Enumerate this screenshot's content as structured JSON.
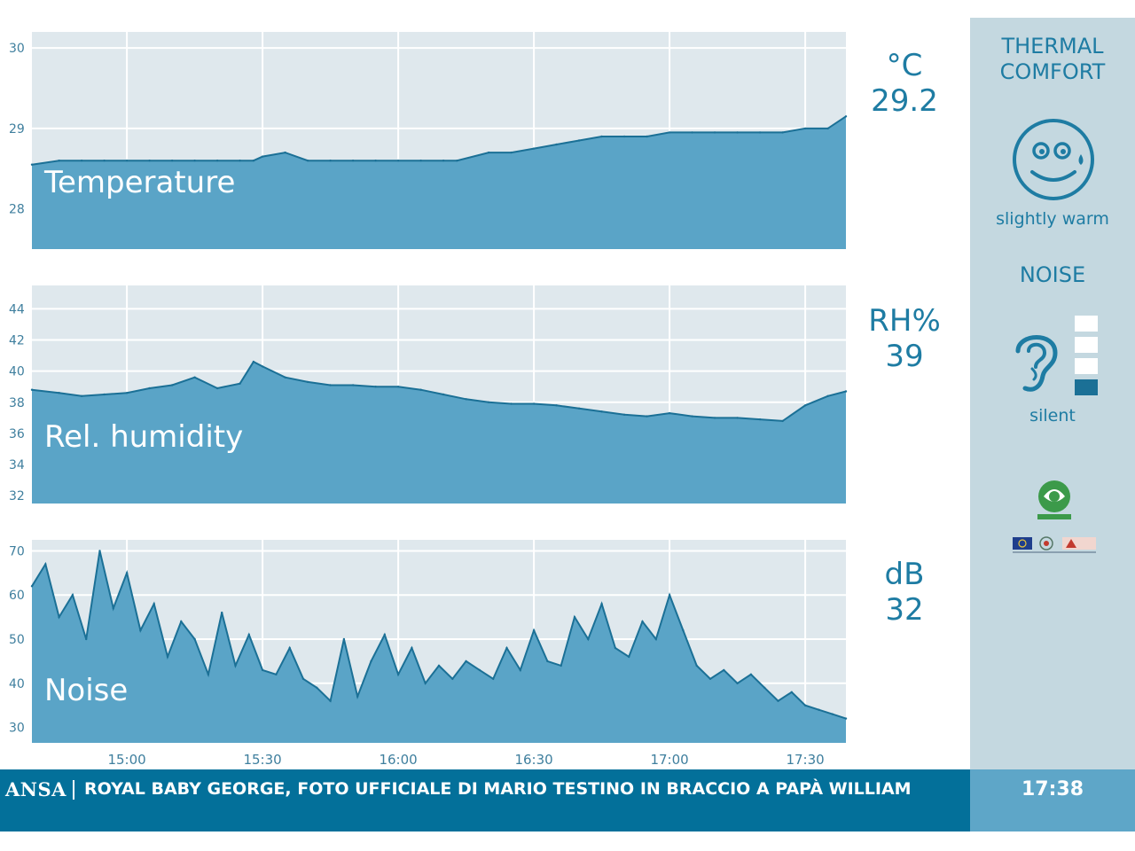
{
  "chart_data": [
    {
      "type": "area",
      "label": "Temperature",
      "unit": "°C",
      "current": "29.2",
      "ylim": [
        27.5,
        30.2
      ],
      "y_ticks": [
        "28",
        "29",
        "30"
      ],
      "x_ticks": [
        "15:00",
        "15:30",
        "16:00",
        "16:30",
        "17:00",
        "17:30"
      ],
      "grid": true,
      "x": [
        "14:39",
        "14:45",
        "14:50",
        "14:55",
        "15:00",
        "15:05",
        "15:10",
        "15:15",
        "15:20",
        "15:25",
        "15:28",
        "15:30",
        "15:35",
        "15:40",
        "15:45",
        "15:50",
        "15:55",
        "16:00",
        "16:05",
        "16:10",
        "16:13",
        "16:20",
        "16:25",
        "16:30",
        "16:35",
        "16:40",
        "16:45",
        "16:50",
        "16:55",
        "17:00",
        "17:05",
        "17:10",
        "17:15",
        "17:20",
        "17:25",
        "17:30",
        "17:35",
        "17:39"
      ],
      "y": [
        28.55,
        28.6,
        28.6,
        28.6,
        28.6,
        28.6,
        28.6,
        28.6,
        28.6,
        28.6,
        28.6,
        28.65,
        28.7,
        28.6,
        28.6,
        28.6,
        28.6,
        28.6,
        28.6,
        28.6,
        28.6,
        28.7,
        28.7,
        28.75,
        28.8,
        28.85,
        28.9,
        28.9,
        28.9,
        28.95,
        28.95,
        28.95,
        28.95,
        28.95,
        28.95,
        29.0,
        29.0,
        29.15
      ]
    },
    {
      "type": "area",
      "label": "Rel. humidity",
      "unit": "RH%",
      "current": "39",
      "ylim": [
        31.5,
        45.5
      ],
      "y_ticks": [
        "32",
        "34",
        "36",
        "38",
        "40",
        "42",
        "44"
      ],
      "x_ticks": [
        "15:00",
        "15:30",
        "16:00",
        "16:30",
        "17:00",
        "17:30"
      ],
      "grid": true,
      "x": [
        "14:39",
        "14:45",
        "14:50",
        "14:55",
        "15:00",
        "15:05",
        "15:10",
        "15:15",
        "15:20",
        "15:25",
        "15:28",
        "15:30",
        "15:35",
        "15:40",
        "15:45",
        "15:50",
        "15:55",
        "16:00",
        "16:05",
        "16:10",
        "16:15",
        "16:20",
        "16:25",
        "16:30",
        "16:35",
        "16:40",
        "16:45",
        "16:50",
        "16:55",
        "17:00",
        "17:05",
        "17:10",
        "17:15",
        "17:20",
        "17:25",
        "17:30",
        "17:35",
        "17:39"
      ],
      "y": [
        38.8,
        38.6,
        38.4,
        38.5,
        38.6,
        38.9,
        39.1,
        39.6,
        38.9,
        39.2,
        40.6,
        40.3,
        39.6,
        39.3,
        39.1,
        39.1,
        39.0,
        39.0,
        38.8,
        38.5,
        38.2,
        38.0,
        37.9,
        37.9,
        37.8,
        37.6,
        37.4,
        37.2,
        37.1,
        37.3,
        37.1,
        37.0,
        37.0,
        36.9,
        36.8,
        37.8,
        38.4,
        38.7
      ]
    },
    {
      "type": "area",
      "label": "Noise",
      "unit": "dB",
      "current": "32",
      "ylim": [
        26.5,
        72.5
      ],
      "y_ticks": [
        "30",
        "40",
        "50",
        "60",
        "70"
      ],
      "x_ticks": [
        "15:00",
        "15:30",
        "16:00",
        "16:30",
        "17:00",
        "17:30"
      ],
      "grid": true,
      "x": [
        "14:39",
        "14:42",
        "14:45",
        "14:48",
        "14:51",
        "14:54",
        "14:57",
        "15:00",
        "15:03",
        "15:06",
        "15:09",
        "15:12",
        "15:15",
        "15:18",
        "15:21",
        "15:24",
        "15:27",
        "15:30",
        "15:33",
        "15:36",
        "15:39",
        "15:42",
        "15:45",
        "15:48",
        "15:51",
        "15:54",
        "15:57",
        "16:00",
        "16:03",
        "16:06",
        "16:09",
        "16:12",
        "16:15",
        "16:18",
        "16:21",
        "16:24",
        "16:27",
        "16:30",
        "16:33",
        "16:36",
        "16:39",
        "16:42",
        "16:45",
        "16:48",
        "16:51",
        "16:54",
        "16:57",
        "17:00",
        "17:03",
        "17:06",
        "17:09",
        "17:12",
        "17:15",
        "17:18",
        "17:21",
        "17:24",
        "17:27",
        "17:30",
        "17:33",
        "17:36",
        "17:39"
      ],
      "y": [
        62,
        67,
        55,
        60,
        50,
        70,
        57,
        65,
        52,
        58,
        46,
        54,
        50,
        42,
        56,
        44,
        51,
        43,
        42,
        48,
        41,
        39,
        36,
        50,
        37,
        45,
        51,
        42,
        48,
        40,
        44,
        41,
        45,
        43,
        41,
        48,
        43,
        52,
        45,
        44,
        55,
        50,
        58,
        48,
        46,
        54,
        50,
        60,
        52,
        44,
        41,
        43,
        40,
        42,
        39,
        36,
        38,
        35,
        34,
        33,
        32
      ]
    }
  ],
  "sidebar": {
    "thermal_title_line1": "THERMAL",
    "thermal_title_line2": "COMFORT",
    "thermal_icon": "sweating-face-icon",
    "thermal_status": "slightly warm",
    "noise_title": "NOISE",
    "noise_icon": "ear-icon",
    "noise_level_of_4": 1,
    "noise_status": "silent"
  },
  "ticker": {
    "source": "ANSA",
    "headline": "ROYAL BABY GEORGE, FOTO UFFICIALE DI MARIO TESTINO IN BRACCIO A PAPÀ WILLIAM"
  },
  "clock": "17:38",
  "colors": {
    "plot_bg": "#dfe8ed",
    "area_fill": "#5aa4c7",
    "line": "#1b7096",
    "accent_text": "#1e7ca3",
    "sidebar_bg": "#c4d8e0",
    "ticker_bg": "#03709a",
    "clock_bg": "#5ea6c8"
  }
}
